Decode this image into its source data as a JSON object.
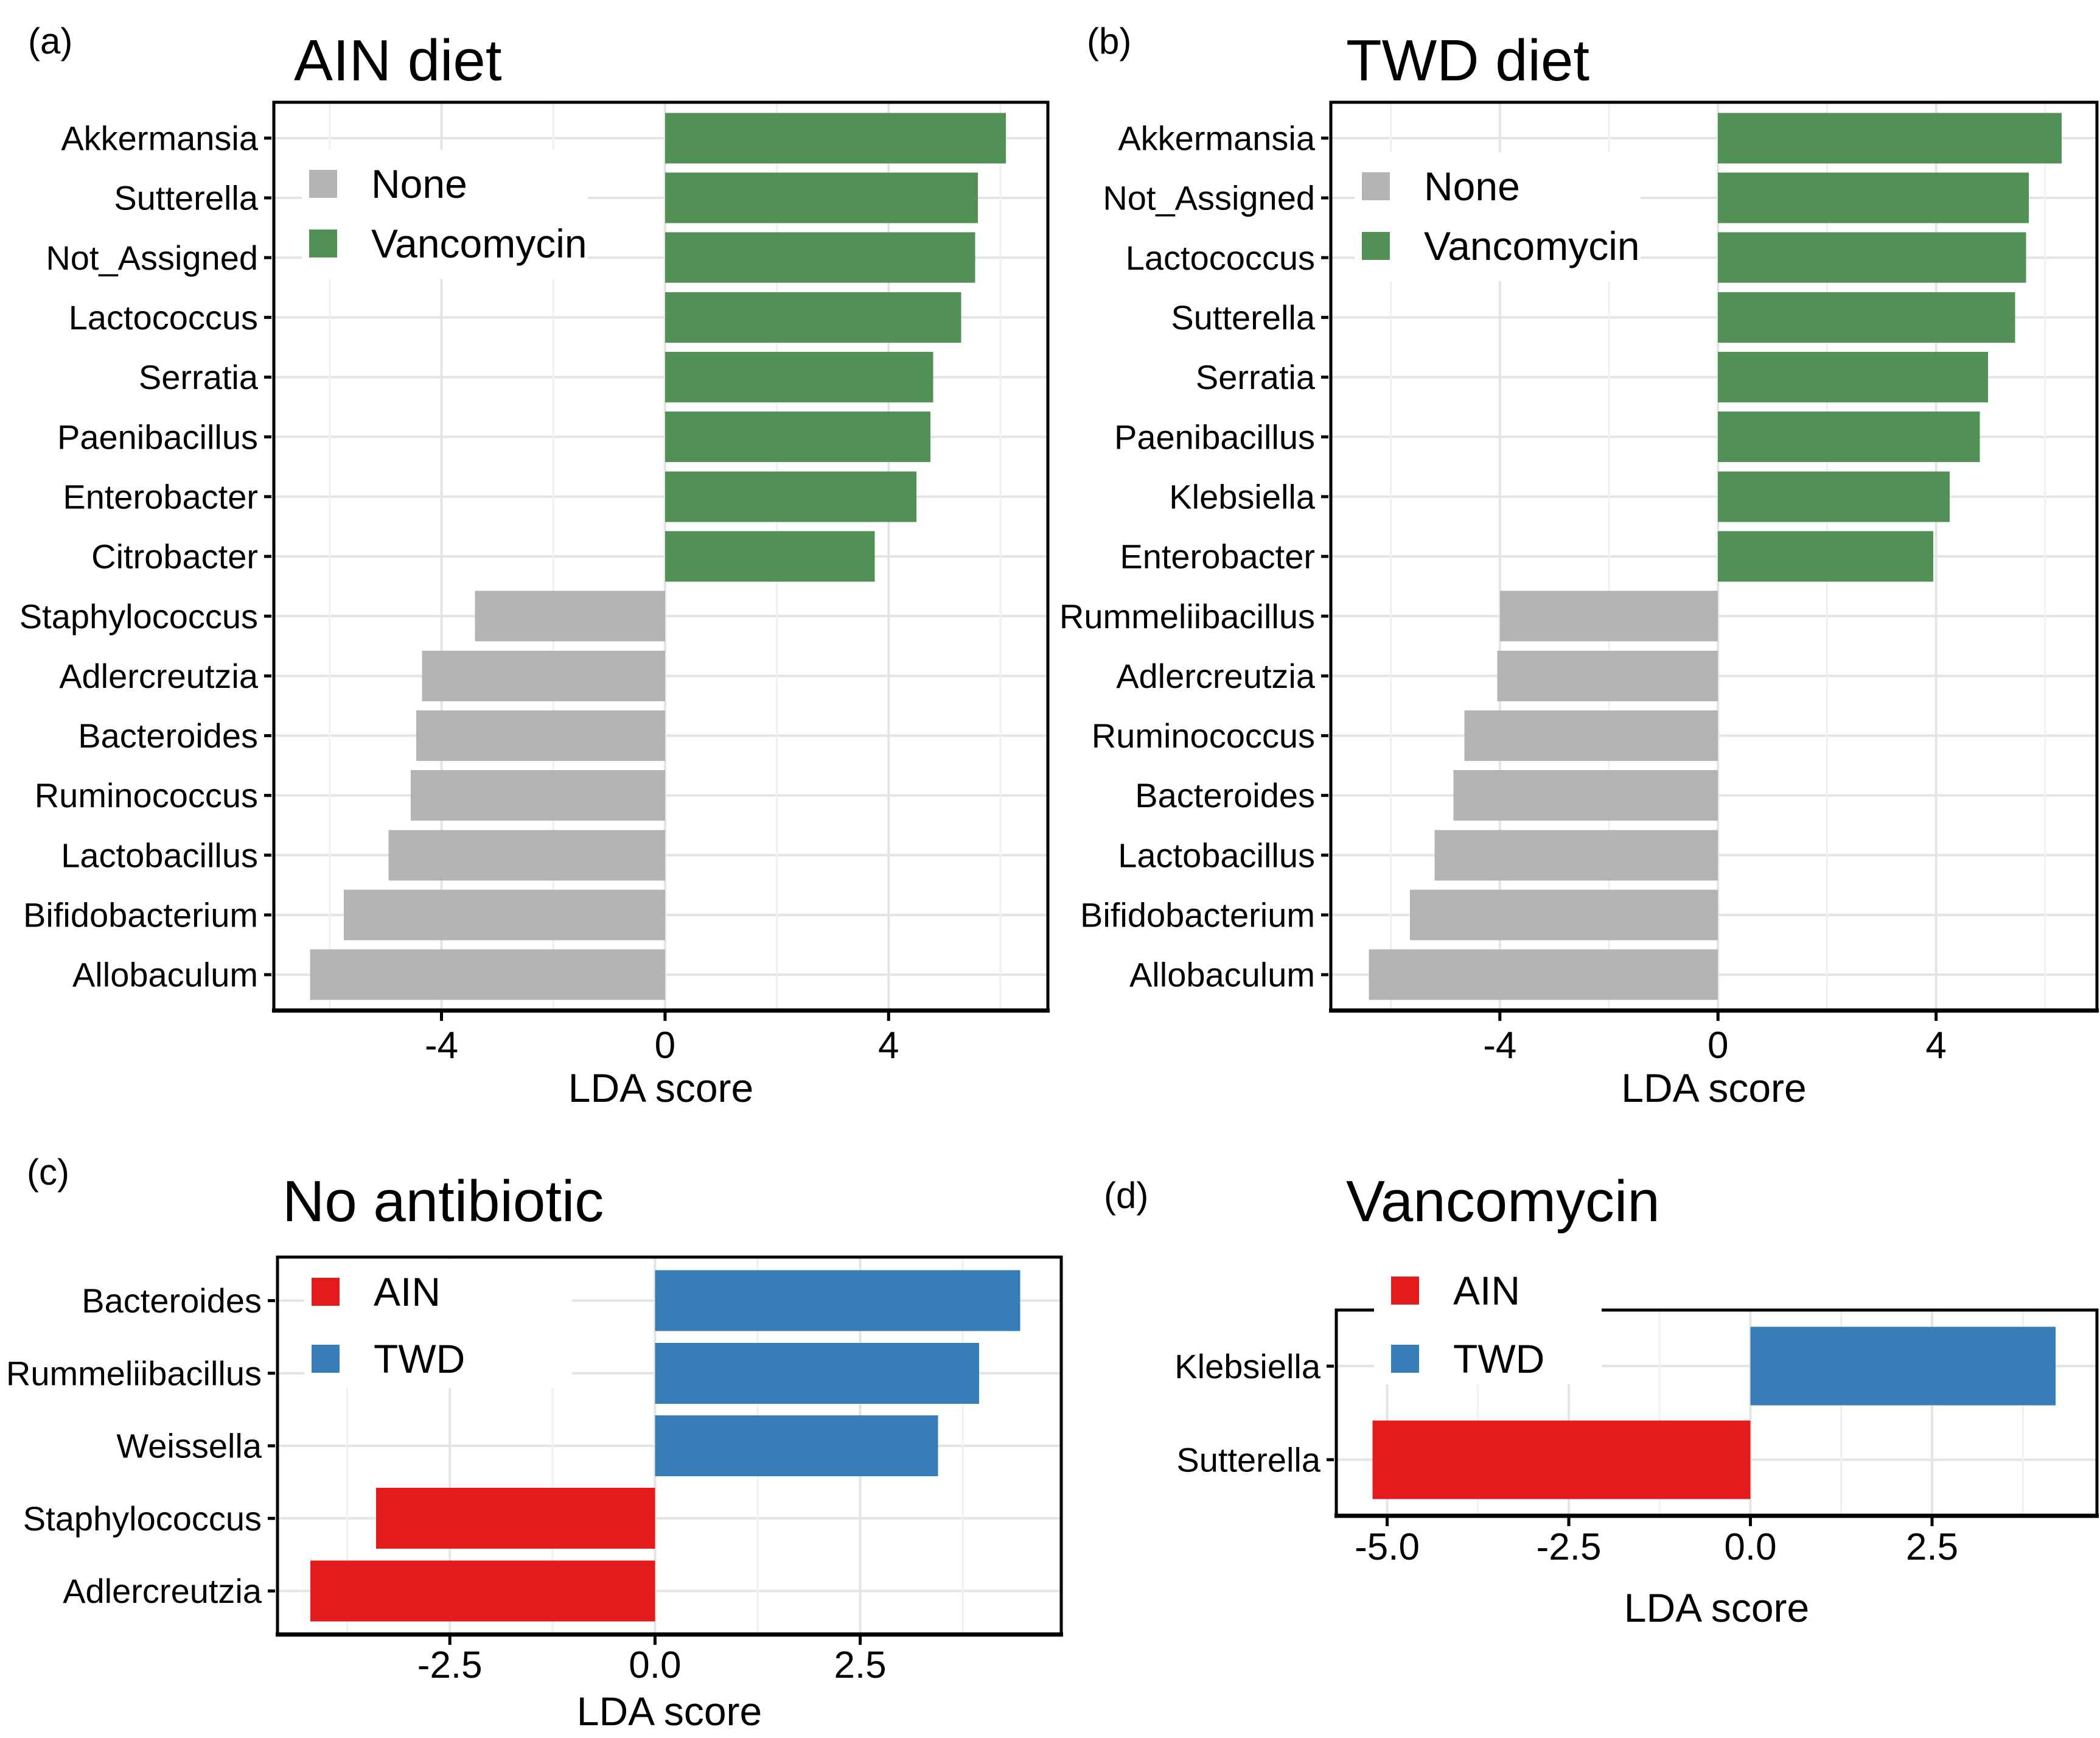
{
  "figure": {
    "background": "#ffffff",
    "x_axis_title": "LDA score"
  },
  "chart_data": [
    {
      "type": "bar",
      "orientation": "horizontal",
      "panel_label": "(a)",
      "title": "AIN diet",
      "xlabel": "LDA score",
      "categories": [
        "Akkermansia",
        "Sutterella",
        "Not_Assigned",
        "Lactococcus",
        "Serratia",
        "Paenibacillus",
        "Enterobacter",
        "Citrobacter",
        "Staphylococcus",
        "Adlercreutzia",
        "Bacteroides",
        "Ruminococcus",
        "Lactobacillus",
        "Bifidobacterium",
        "Allobaculum"
      ],
      "values": [
        6.1,
        5.6,
        5.55,
        5.3,
        4.8,
        4.75,
        4.5,
        3.75,
        -3.4,
        -4.35,
        -4.45,
        -4.55,
        -4.95,
        -5.75,
        -6.35
      ],
      "groups": [
        "Vancomycin",
        "Vancomycin",
        "Vancomycin",
        "Vancomycin",
        "Vancomycin",
        "Vancomycin",
        "Vancomycin",
        "Vancomycin",
        "None",
        "None",
        "None",
        "None",
        "None",
        "None",
        "None"
      ],
      "legend": [
        {
          "label": "None",
          "color": "#b3b3b3"
        },
        {
          "label": "Vancomycin",
          "color": "#529156"
        }
      ],
      "legend_position": "upper-left-inset",
      "xlim": [
        -7.0,
        6.85
      ],
      "x_major_ticks": [
        -4,
        0,
        4
      ],
      "x_tick_labels": [
        "-4",
        "0",
        "4"
      ],
      "x_minor_gridlines": [
        -6,
        -2,
        2,
        6
      ],
      "grid": true
    },
    {
      "type": "bar",
      "orientation": "horizontal",
      "panel_label": "(b)",
      "title": "TWD diet",
      "xlabel": "LDA score",
      "categories": [
        "Akkermansia",
        "Not_Assigned",
        "Lactococcus",
        "Sutterella",
        "Serratia",
        "Paenibacillus",
        "Klebsiella",
        "Enterobacter",
        "Rummeliibacillus",
        "Adlercreutzia",
        "Ruminococcus",
        "Bacteroides",
        "Lactobacillus",
        "Bifidobacterium",
        "Allobaculum"
      ],
      "values": [
        6.3,
        5.7,
        5.65,
        5.45,
        4.95,
        4.8,
        4.25,
        3.95,
        -4.0,
        -4.05,
        -4.65,
        -4.85,
        -5.2,
        -5.65,
        -6.4
      ],
      "groups": [
        "Vancomycin",
        "Vancomycin",
        "Vancomycin",
        "Vancomycin",
        "Vancomycin",
        "Vancomycin",
        "Vancomycin",
        "Vancomycin",
        "None",
        "None",
        "None",
        "None",
        "None",
        "None",
        "None"
      ],
      "legend": [
        {
          "label": "None",
          "color": "#b3b3b3"
        },
        {
          "label": "Vancomycin",
          "color": "#529156"
        }
      ],
      "legend_position": "upper-left-inset",
      "xlim": [
        -7.1,
        6.95
      ],
      "x_major_ticks": [
        -4,
        0,
        4
      ],
      "x_tick_labels": [
        "-4",
        "0",
        "4"
      ],
      "x_minor_gridlines": [
        -6,
        -2,
        2,
        6
      ],
      "grid": true
    },
    {
      "type": "bar",
      "orientation": "horizontal",
      "panel_label": "(c)",
      "title": "No antibiotic",
      "xlabel": "LDA score",
      "categories": [
        "Bacteroides",
        "Rummeliibacillus",
        "Weissella",
        "Staphylococcus",
        "Adlercreutzia"
      ],
      "values": [
        4.45,
        3.95,
        3.45,
        -3.4,
        -4.2
      ],
      "groups": [
        "TWD",
        "TWD",
        "TWD",
        "AIN",
        "AIN"
      ],
      "legend": [
        {
          "label": "AIN",
          "color": "#e41a1c"
        },
        {
          "label": "TWD",
          "color": "#377eb8"
        }
      ],
      "legend_position": "upper-left-inset",
      "xlim": [
        -4.6,
        4.95
      ],
      "x_major_ticks": [
        -2.5,
        0,
        2.5
      ],
      "x_tick_labels": [
        "-2.5",
        "0.0",
        "2.5"
      ],
      "x_minor_gridlines": [
        -3.75,
        -1.25,
        1.25,
        3.75
      ],
      "grid": true
    },
    {
      "type": "bar",
      "orientation": "horizontal",
      "panel_label": "(d)",
      "title": "Vancomycin",
      "xlabel": "LDA score",
      "categories": [
        "Klebsiella",
        "Sutterella"
      ],
      "values": [
        4.2,
        -5.2
      ],
      "groups": [
        "TWD",
        "AIN"
      ],
      "legend": [
        {
          "label": "AIN",
          "color": "#e41a1c"
        },
        {
          "label": "TWD",
          "color": "#377eb8"
        }
      ],
      "legend_position": "upper-left-inset",
      "xlim": [
        -5.7,
        4.77
      ],
      "x_major_ticks": [
        -5,
        -2.5,
        0,
        2.5
      ],
      "x_tick_labels": [
        "-5.0",
        "-2.5",
        "0.0",
        "2.5"
      ],
      "x_minor_gridlines": [
        -3.75,
        -1.25,
        1.25,
        3.75
      ],
      "grid": true
    }
  ]
}
